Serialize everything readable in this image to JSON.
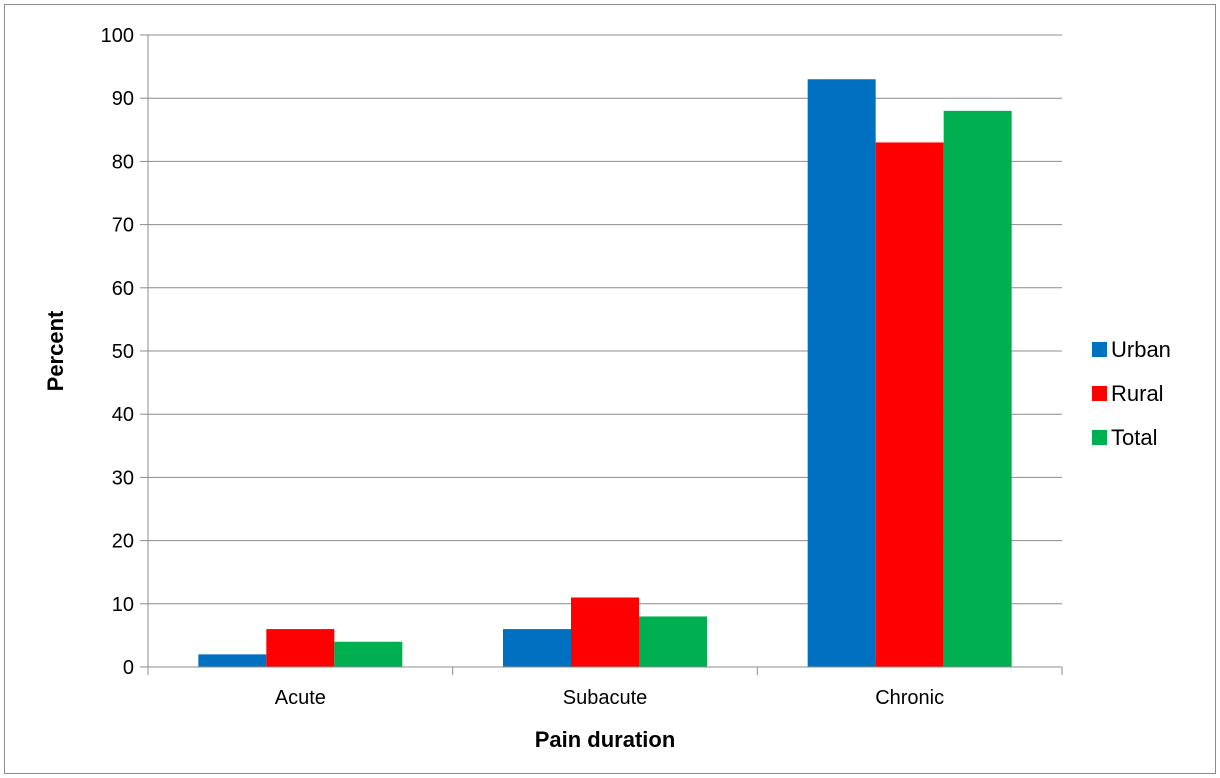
{
  "chart_data": {
    "type": "bar",
    "title": "",
    "xlabel": "Pain duration",
    "ylabel": "Percent",
    "categories": [
      "Acute",
      "Subacute",
      "Chronic"
    ],
    "series": [
      {
        "name": "Urban",
        "color": "#0070C0",
        "values": [
          2,
          6,
          93
        ]
      },
      {
        "name": "Rural",
        "color": "#FF0000",
        "values": [
          6,
          11,
          83
        ]
      },
      {
        "name": "Total",
        "color": "#00B050",
        "values": [
          4,
          8,
          88
        ]
      }
    ],
    "ylim": [
      0,
      100
    ],
    "yticks": [
      "0",
      "10",
      "20",
      "30",
      "40",
      "50",
      "60",
      "70",
      "80",
      "90",
      "100"
    ],
    "grid": true,
    "legend_position": "right"
  }
}
